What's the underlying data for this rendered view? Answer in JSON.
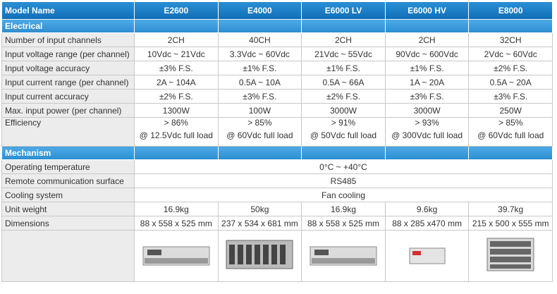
{
  "header": {
    "label": "Model Name",
    "models": [
      "E2600",
      "E4000",
      "E6000 LV",
      "E6000 HV",
      "E8000"
    ]
  },
  "sections": [
    {
      "title": "Electrical",
      "rows": [
        {
          "label": "Number of input channels",
          "cells": [
            "2CH",
            "40CH",
            "2CH",
            "2CH",
            "32CH"
          ]
        },
        {
          "label": "Input voltage range (per channel)",
          "cells": [
            "10Vdc ~ 21Vdc",
            "3.3Vdc ~ 60Vdc",
            "21Vdc ~ 55Vdc",
            "90Vdc ~ 600Vdc",
            "2Vdc ~ 60Vdc"
          ]
        },
        {
          "label": "Input voltage accuracy",
          "cells": [
            "±3% F.S.",
            "±1% F.S.",
            "±1% F.S.",
            "±1% F.S.",
            "±2% F.S."
          ]
        },
        {
          "label": "Input current range (per channel)",
          "cells": [
            "2A ~ 104A",
            "0.5A ~ 10A",
            "0.5A ~ 66A",
            "1A ~ 20A",
            "0.5A ~ 20A"
          ]
        },
        {
          "label": "Input current accuracy",
          "cells": [
            "±2% F.S.",
            "±3% F.S.",
            "±2% F.S.",
            "±3% F.S.",
            "±3% F.S."
          ]
        },
        {
          "label": "Max. input power (per channel)",
          "cells": [
            "1300W",
            "100W",
            "3000W",
            "3000W",
            "250W"
          ]
        },
        {
          "label": "Efficiency",
          "cells": [
            {
              "value": "> 86%",
              "note": "@ 12.5Vdc full load"
            },
            {
              "value": "> 85%",
              "note": "@ 60Vdc full load"
            },
            {
              "value": "> 91%",
              "note": "@ 50Vdc full load"
            },
            {
              "value": "> 93%",
              "note": "@ 300Vdc full load"
            },
            {
              "value": "> 85%",
              "note": "@ 60Vdc full load"
            }
          ]
        }
      ]
    },
    {
      "title": "Mechanism",
      "rows": [
        {
          "label": "Operating temperature",
          "span": "0°C ~ +40°C"
        },
        {
          "label": "Remote communication surface",
          "span": "RS485"
        },
        {
          "label": "Cooling system",
          "span": "Fan cooling"
        },
        {
          "label": "Unit weight",
          "cells": [
            "16.9kg",
            "50kg",
            "16.9kg",
            "9.6kg",
            "39.7kg"
          ]
        },
        {
          "label": "Dimensions",
          "cells": [
            "88 x 558 x 525 mm",
            "237 x 534 x 681 mm",
            "88 x 558 x 525 mm",
            "88 x 285 x470 mm",
            "215 x 500 x 555 mm"
          ]
        }
      ]
    }
  ]
}
